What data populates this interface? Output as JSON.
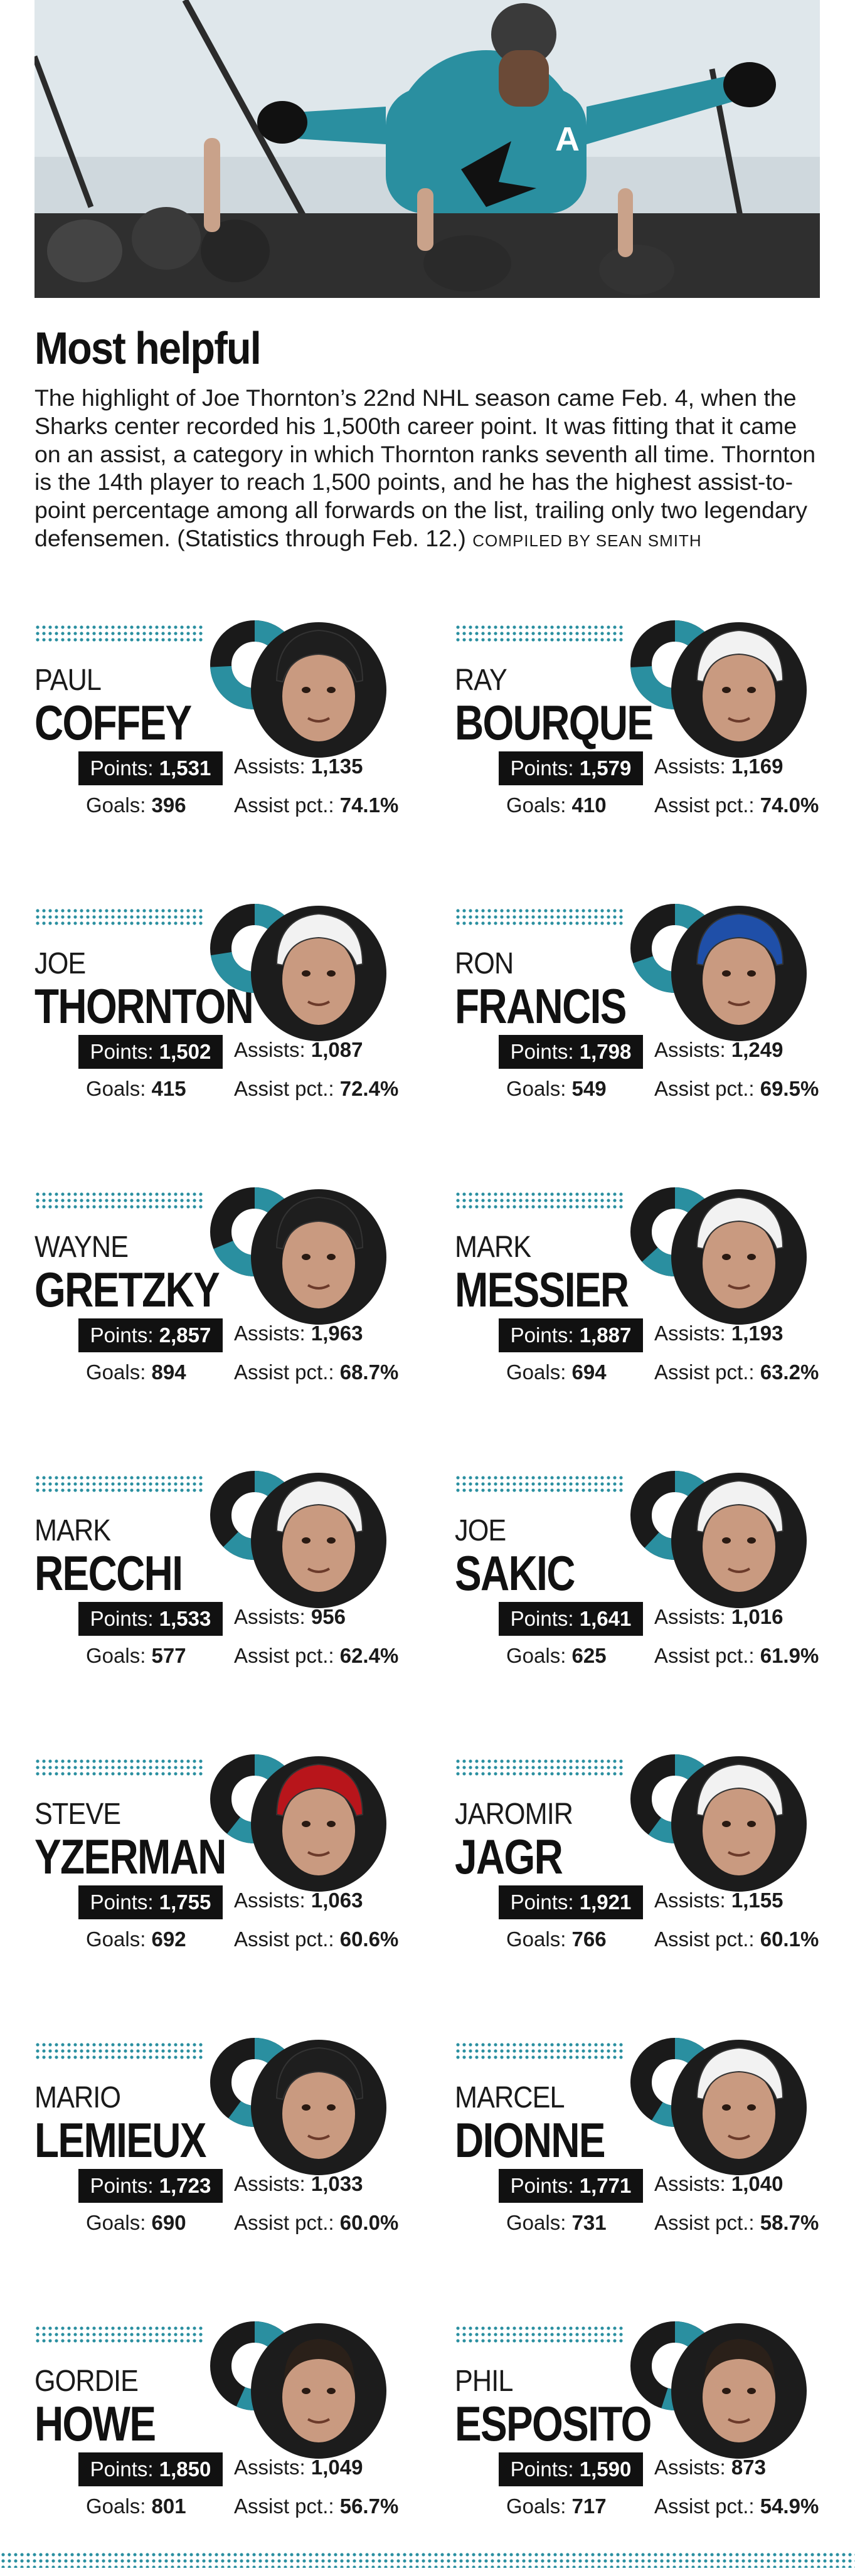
{
  "title": "Most helpful",
  "intro": "The highlight of Joe Thornton’s 22nd NHL season came Feb. 4, when the Sharks center recorded his 1,500th career point. It was fitting that it came on an assist, a category in which Thornton ranks seventh all time. Thornton is the 14th player to reach 1,500 points, and he has the highest assist-to-point percentage among all forwards on the list, trailing only two legendary defensemen. (Statistics through Feb. 12.)",
  "credit": "COMPILED BY SEAN SMITH",
  "labels": {
    "points": "Points:",
    "assists": "Assists:",
    "goals": "Goals:",
    "assist_pct": "Assist pct.:"
  },
  "colors": {
    "accent": "#2a8fa0",
    "dark": "#1a1a1a"
  },
  "players": [
    {
      "first": "PAUL",
      "last": "COFFEY",
      "points": "1,531",
      "assists": "1,135",
      "goals": "396",
      "assist_pct": "74.1%",
      "pct_value": 74.1,
      "helmet": "black"
    },
    {
      "first": "RAY",
      "last": "BOURQUE",
      "points": "1,579",
      "assists": "1,169",
      "goals": "410",
      "assist_pct": "74.0%",
      "pct_value": 74.0,
      "helmet": "white"
    },
    {
      "first": "JOE",
      "last": "THORNTON",
      "points": "1,502",
      "assists": "1,087",
      "goals": "415",
      "assist_pct": "72.4%",
      "pct_value": 72.4,
      "helmet": "white"
    },
    {
      "first": "RON",
      "last": "FRANCIS",
      "points": "1,798",
      "assists": "1,249",
      "goals": "549",
      "assist_pct": "69.5%",
      "pct_value": 69.5,
      "helmet": "blue"
    },
    {
      "first": "WAYNE",
      "last": "GRETZKY",
      "points": "2,857",
      "assists": "1,963",
      "goals": "894",
      "assist_pct": "68.7%",
      "pct_value": 68.7,
      "helmet": "black"
    },
    {
      "first": "MARK",
      "last": "MESSIER",
      "points": "1,887",
      "assists": "1,193",
      "goals": "694",
      "assist_pct": "63.2%",
      "pct_value": 63.2,
      "helmet": "white"
    },
    {
      "first": "MARK",
      "last": "RECCHI",
      "points": "1,533",
      "assists": "956",
      "goals": "577",
      "assist_pct": "62.4%",
      "pct_value": 62.4,
      "helmet": "white"
    },
    {
      "first": "JOE",
      "last": "SAKIC",
      "points": "1,641",
      "assists": "1,016",
      "goals": "625",
      "assist_pct": "61.9%",
      "pct_value": 61.9,
      "helmet": "white"
    },
    {
      "first": "STEVE",
      "last": "YZERMAN",
      "points": "1,755",
      "assists": "1,063",
      "goals": "692",
      "assist_pct": "60.6%",
      "pct_value": 60.6,
      "helmet": "red"
    },
    {
      "first": "JAROMIR",
      "last": "JAGR",
      "points": "1,921",
      "assists": "1,155",
      "goals": "766",
      "assist_pct": "60.1%",
      "pct_value": 60.1,
      "helmet": "white"
    },
    {
      "first": "MARIO",
      "last": "LEMIEUX",
      "points": "1,723",
      "assists": "1,033",
      "goals": "690",
      "assist_pct": "60.0%",
      "pct_value": 60.0,
      "helmet": "black"
    },
    {
      "first": "MARCEL",
      "last": "DIONNE",
      "points": "1,771",
      "assists": "1,040",
      "goals": "731",
      "assist_pct": "58.7%",
      "pct_value": 58.7,
      "helmet": "white"
    },
    {
      "first": "GORDIE",
      "last": "HOWE",
      "points": "1,850",
      "assists": "1,049",
      "goals": "801",
      "assist_pct": "56.7%",
      "pct_value": 56.7,
      "helmet": "none"
    },
    {
      "first": "PHIL",
      "last": "ESPOSITO",
      "points": "1,590",
      "assists": "873",
      "goals": "717",
      "assist_pct": "54.9%",
      "pct_value": 54.9,
      "helmet": "none"
    }
  ]
}
